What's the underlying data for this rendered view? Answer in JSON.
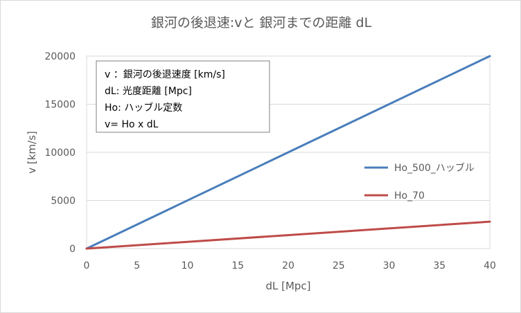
{
  "chart_data": {
    "type": "line",
    "title": "銀河の後退速:vと 銀河までの距離 dL",
    "xlabel": "dL [Mpc]",
    "ylabel": "v [km/s]",
    "xlim": [
      0,
      40
    ],
    "ylim": [
      0,
      20000
    ],
    "xticks": [
      0,
      5,
      10,
      15,
      20,
      25,
      30,
      35,
      40
    ],
    "yticks": [
      0,
      5000,
      10000,
      15000,
      20000
    ],
    "grid": "horizontal",
    "legend_position": "right",
    "annotation_lines": [
      "v ：銀河の後退速度 [km/s]",
      "dL: 光度距離 [Mpc]",
      "Ho: ハッブル定数",
      "v= Ho x dL"
    ],
    "series": [
      {
        "name": "Ho_500_ハッブル",
        "color": "#4a7ebb",
        "x": [
          0,
          40
        ],
        "y": [
          0,
          20000
        ]
      },
      {
        "name": "Ho_70",
        "color": "#be4b48",
        "x": [
          0,
          40
        ],
        "y": [
          0,
          2800
        ]
      }
    ]
  }
}
